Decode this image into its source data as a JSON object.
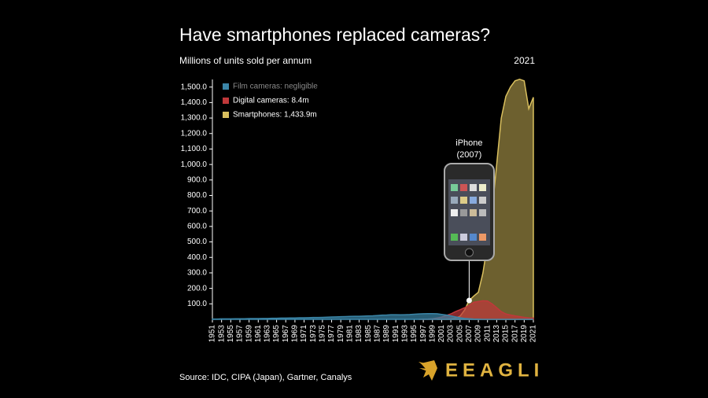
{
  "chart_data": {
    "type": "area",
    "title": "Have smartphones replaced cameras?",
    "subtitle": "Millions of units sold per annum",
    "year_label": "2021",
    "annotation": {
      "line1": "iPhone",
      "line2": "(2007)",
      "x": 2007
    },
    "source": "Source: IDC, CIPA (Japan), Gartner, Canalys",
    "logo": "EEAGLI",
    "x": [
      1951,
      1952,
      1953,
      1954,
      1955,
      1956,
      1957,
      1958,
      1959,
      1960,
      1961,
      1962,
      1963,
      1964,
      1965,
      1966,
      1967,
      1968,
      1969,
      1970,
      1971,
      1972,
      1973,
      1974,
      1975,
      1976,
      1977,
      1978,
      1979,
      1980,
      1981,
      1982,
      1983,
      1984,
      1985,
      1986,
      1987,
      1988,
      1989,
      1990,
      1991,
      1992,
      1993,
      1994,
      1995,
      1996,
      1997,
      1998,
      1999,
      2000,
      2001,
      2002,
      2003,
      2004,
      2005,
      2006,
      2007,
      2008,
      2009,
      2010,
      2011,
      2012,
      2013,
      2014,
      2015,
      2016,
      2017,
      2018,
      2019,
      2020,
      2021
    ],
    "series": [
      {
        "name": "Film cameras: negligible",
        "color": "#3b86a8",
        "legend_text_color": "#8a8a8a",
        "values": [
          2,
          2,
          3,
          3,
          3,
          4,
          4,
          4,
          5,
          5,
          5,
          6,
          6,
          7,
          7,
          8,
          8,
          9,
          9,
          10,
          10,
          11,
          12,
          12,
          13,
          14,
          15,
          16,
          17,
          18,
          19,
          20,
          20,
          21,
          22,
          23,
          25,
          27,
          28,
          30,
          30,
          29,
          30,
          31,
          33,
          35,
          36,
          37,
          37,
          36,
          32,
          28,
          22,
          16,
          10,
          6,
          4,
          2,
          1,
          0,
          0,
          0,
          0,
          0,
          0,
          0,
          0,
          0,
          0,
          0,
          0
        ]
      },
      {
        "name": "Digital cameras: 8.4m",
        "color": "#c0383a",
        "legend_text_color": "#ffffff",
        "values": [
          null,
          null,
          null,
          null,
          null,
          null,
          null,
          null,
          null,
          null,
          null,
          null,
          null,
          null,
          null,
          null,
          null,
          null,
          null,
          null,
          null,
          null,
          null,
          null,
          null,
          null,
          null,
          null,
          null,
          null,
          null,
          null,
          null,
          null,
          null,
          null,
          null,
          null,
          null,
          null,
          null,
          null,
          null,
          null,
          null,
          0,
          1,
          2,
          4,
          8,
          15,
          25,
          35,
          50,
          62,
          75,
          90,
          110,
          115,
          120,
          118,
          100,
          75,
          50,
          35,
          28,
          22,
          18,
          13,
          9,
          8.4
        ]
      },
      {
        "name": "Smartphones: 1,433.9m",
        "color": "#d9bf5e",
        "legend_text_color": "#ffffff",
        "values": [
          null,
          null,
          null,
          null,
          null,
          null,
          null,
          null,
          null,
          null,
          null,
          null,
          null,
          null,
          null,
          null,
          null,
          null,
          null,
          null,
          null,
          null,
          null,
          null,
          null,
          null,
          null,
          null,
          null,
          null,
          null,
          null,
          null,
          null,
          null,
          null,
          null,
          null,
          null,
          null,
          null,
          null,
          null,
          null,
          null,
          null,
          null,
          null,
          null,
          0,
          1,
          2,
          4,
          8,
          20,
          60,
          122,
          150,
          175,
          300,
          490,
          700,
          1000,
          1300,
          1440,
          1500,
          1540,
          1550,
          1540,
          1360,
          1433.9
        ]
      }
    ],
    "xlim": [
      1951,
      2021
    ],
    "xticks": [
      1951,
      1953,
      1955,
      1957,
      1959,
      1961,
      1963,
      1965,
      1967,
      1969,
      1971,
      1973,
      1975,
      1977,
      1979,
      1981,
      1983,
      1985,
      1987,
      1989,
      1991,
      1993,
      1995,
      1997,
      1999,
      2001,
      2003,
      2005,
      2007,
      2009,
      2011,
      2013,
      2015,
      2017,
      2019,
      2021
    ],
    "ylim": [
      0,
      1600
    ],
    "yticks": [
      {
        "value": 100,
        "label": "100.0"
      },
      {
        "value": 200,
        "label": "200.0"
      },
      {
        "value": 300,
        "label": "300.0"
      },
      {
        "value": 400,
        "label": "400.0"
      },
      {
        "value": 500,
        "label": "500.0"
      },
      {
        "value": 600,
        "label": "600.0"
      },
      {
        "value": 700,
        "label": "700.0"
      },
      {
        "value": 800,
        "label": "800.0"
      },
      {
        "value": 900,
        "label": "900.0"
      },
      {
        "value": 1000,
        "label": "1,000.0"
      },
      {
        "value": 1100,
        "label": "1,100.0"
      },
      {
        "value": 1200,
        "label": "1,200.0"
      },
      {
        "value": 1300,
        "label": "1,300.0"
      },
      {
        "value": 1400,
        "label": "1,400.0"
      },
      {
        "value": 1500,
        "label": "1,500.0"
      }
    ],
    "grid": false
  }
}
